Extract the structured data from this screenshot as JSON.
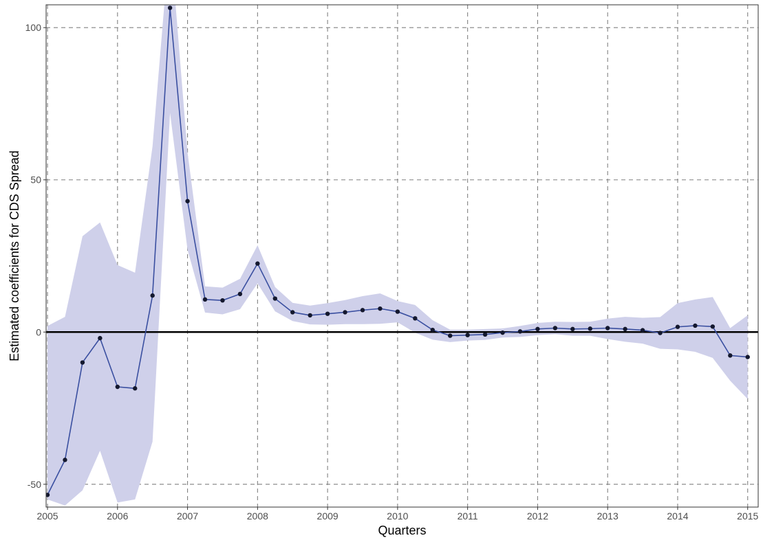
{
  "chart_data": {
    "type": "line",
    "title": "",
    "xlabel": "Quarters",
    "ylabel": "Estimated coefficients for CDS Spread",
    "xlim": [
      2004.98,
      2015.15
    ],
    "ylim": [
      -57.5,
      107.5
    ],
    "x_ticks": [
      2005,
      2006,
      2007,
      2008,
      2009,
      2010,
      2011,
      2012,
      2013,
      2014,
      2015
    ],
    "x_tick_labels": [
      "2005",
      "2006",
      "2007",
      "2008",
      "2009",
      "2010",
      "2011",
      "2012",
      "2013",
      "2014",
      "2015"
    ],
    "y_ticks": [
      -50,
      0,
      50,
      100
    ],
    "y_tick_labels": [
      "-50",
      "0",
      "50",
      "100"
    ],
    "reference_line_y": 0,
    "grid": true,
    "grid_style": "dashed",
    "colors": {
      "line": "#3a4fa0",
      "points": "#14182e",
      "ribbon": "#cfd0ea",
      "grid": "#808080",
      "zero_line": "#000000"
    },
    "series": [
      {
        "x": [
          2005.0,
          2005.25,
          2005.5,
          2005.75,
          2006.0,
          2006.25,
          2006.5,
          2006.75,
          2007.0,
          2007.25,
          2007.5,
          2007.75,
          2008.0,
          2008.25,
          2008.5,
          2008.75,
          2009.0,
          2009.25,
          2009.5,
          2009.75,
          2010.0,
          2010.25,
          2010.5,
          2010.75,
          2011.0,
          2011.25,
          2011.5,
          2011.75,
          2012.0,
          2012.25,
          2012.5,
          2012.75,
          2013.0,
          2013.25,
          2013.5,
          2013.75,
          2014.0,
          2014.25,
          2014.5,
          2014.75,
          2015.0
        ],
        "values": [
          -53.5,
          -42,
          -10,
          -2,
          -18,
          -18.5,
          12,
          106.5,
          43,
          10.7,
          10.4,
          12.5,
          22.5,
          11,
          6.5,
          5.5,
          6,
          6.5,
          7.2,
          7.7,
          6.7,
          4.5,
          0.7,
          -1.2,
          -1,
          -0.8,
          -0.2,
          0.2,
          1,
          1.3,
          1,
          1.1,
          1.3,
          1,
          0.6,
          -0.3,
          1.7,
          2.1,
          1.8,
          -7.7,
          -8.2
        ],
        "lower": [
          -55,
          -57,
          -52,
          -39,
          -56,
          -55,
          -36,
          72,
          27,
          6.4,
          5.8,
          7.5,
          16,
          6.8,
          3.6,
          2.5,
          2.4,
          2.6,
          2.6,
          2.7,
          3.2,
          -0.2,
          -2.5,
          -3.3,
          -2.8,
          -2.6,
          -1.8,
          -1.6,
          -1.0,
          -0.7,
          -1.2,
          -1.2,
          -2.3,
          -3.2,
          -3.8,
          -5.5,
          -5.7,
          -6.5,
          -8.5,
          -16,
          -22
        ],
        "upper": [
          2,
          5,
          31.5,
          36,
          22,
          19.5,
          61,
          130,
          59,
          15,
          14.6,
          17.5,
          28.5,
          14.8,
          9.6,
          8.7,
          9.5,
          10.5,
          11.8,
          12.7,
          10.2,
          8.9,
          3.9,
          0.8,
          0.8,
          1.0,
          1.2,
          2.0,
          3.0,
          3.4,
          3.3,
          3.4,
          4.4,
          5.0,
          4.7,
          4.9,
          9.5,
          10.7,
          11.5,
          1.3,
          5.5
        ]
      }
    ]
  }
}
